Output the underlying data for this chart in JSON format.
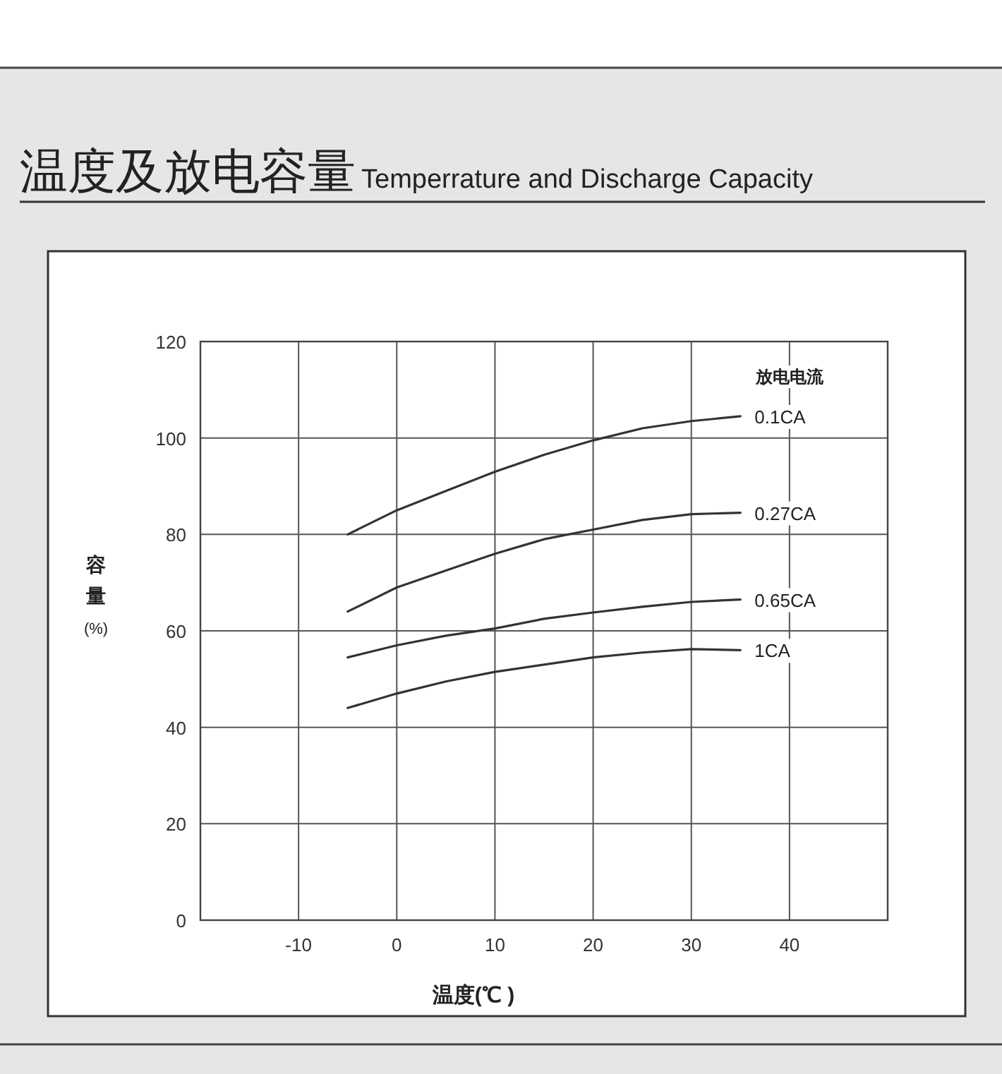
{
  "chart_data": {
    "type": "line",
    "title": "温度及放电容量",
    "subtitle": "Temperrature and Discharge Capacity",
    "xlabel": "温度(℃ )",
    "ylabel": "容量(%)",
    "legend_title": "放电电流",
    "x": [
      -5,
      0,
      5,
      10,
      15,
      20,
      25,
      30,
      35
    ],
    "series": [
      {
        "name": "0.1CA",
        "color": "#333333",
        "values": [
          80,
          85,
          89,
          93,
          96.5,
          99.5,
          102,
          103.5,
          104.5
        ]
      },
      {
        "name": "0.27CA",
        "color": "#333333",
        "values": [
          64,
          69,
          72.5,
          76,
          79,
          81,
          83,
          84.2,
          84.5
        ]
      },
      {
        "name": "0.65CA",
        "color": "#333333",
        "values": [
          54.5,
          57,
          59,
          60.5,
          62.5,
          63.8,
          65,
          66,
          66.5
        ]
      },
      {
        "name": "1CA",
        "color": "#333333",
        "values": [
          44,
          47,
          49.5,
          51.5,
          53,
          54.5,
          55.5,
          56.2,
          56
        ]
      }
    ],
    "xlim": [
      -20,
      50
    ],
    "ylim": [
      0,
      120
    ],
    "xticks": [
      -10,
      0,
      10,
      20,
      30,
      40
    ],
    "yticks": [
      0,
      20,
      40,
      60,
      80,
      100,
      120
    ],
    "grid": true,
    "marker": "none",
    "line_style": "solid"
  }
}
